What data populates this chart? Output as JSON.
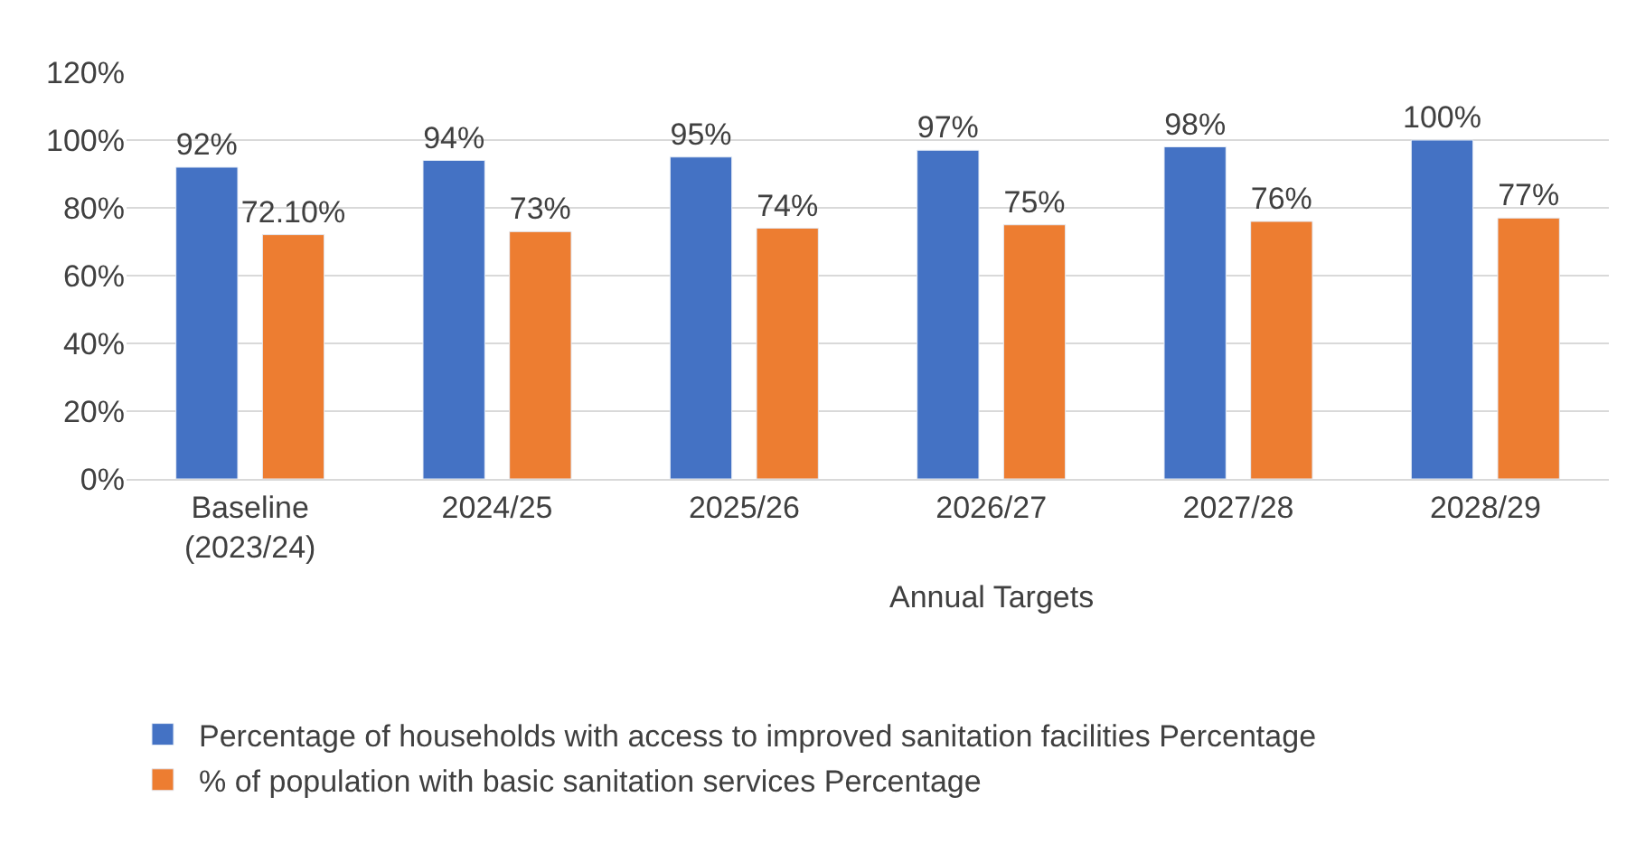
{
  "chart_data": {
    "type": "bar",
    "categories": [
      "Baseline (2023/24)",
      "2024/25",
      "2025/26",
      "2026/27",
      "2027/28",
      "2028/29"
    ],
    "series": [
      {
        "name": "Percentage of households with access to improved sanitation facilities Percentage",
        "color": "#4472c4",
        "values": [
          92,
          94,
          95,
          97,
          98,
          100
        ],
        "value_labels": [
          "92%",
          "94%",
          "95%",
          "97%",
          "98%",
          "100%"
        ]
      },
      {
        "name": "% of population with basic sanitation services Percentage",
        "color": "#ed7d31",
        "values": [
          72.1,
          73,
          74,
          75,
          76,
          77
        ],
        "value_labels": [
          "72.10%",
          "73%",
          "74%",
          "75%",
          "76%",
          "77%"
        ]
      }
    ],
    "annotations": [
      "Annual Targets"
    ],
    "ylim": [
      0,
      120
    ],
    "yticks": [
      {
        "value": 0,
        "label": "0%"
      },
      {
        "value": 20,
        "label": "20%"
      },
      {
        "value": 40,
        "label": "40%"
      },
      {
        "value": 60,
        "label": "60%"
      },
      {
        "value": 80,
        "label": "80%"
      },
      {
        "value": 100,
        "label": "100%"
      },
      {
        "value": 120,
        "label": "120%"
      }
    ],
    "grid": "y",
    "legend": "bottom"
  }
}
